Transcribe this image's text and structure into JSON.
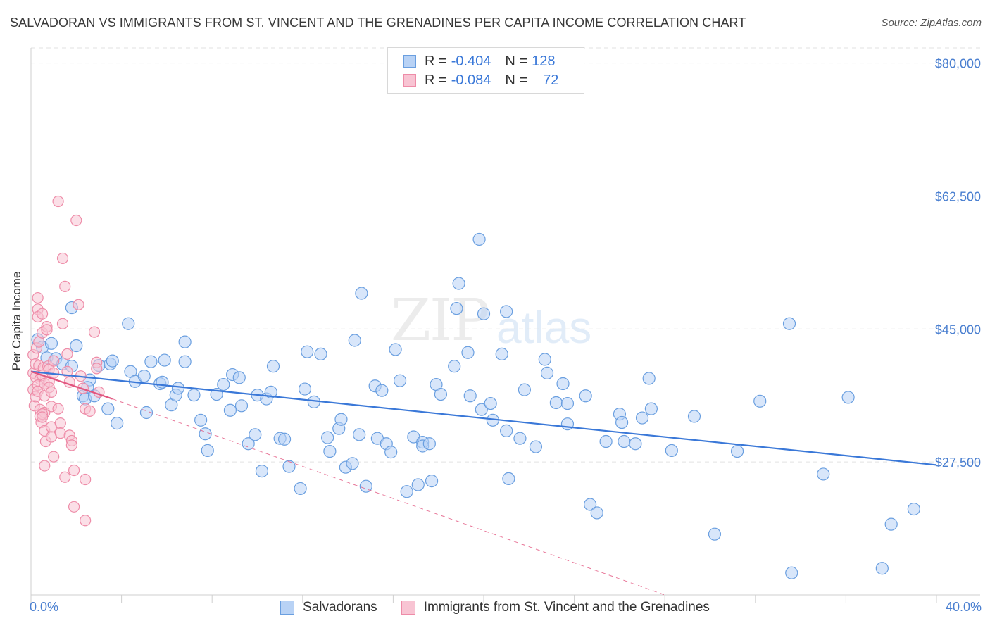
{
  "header": {
    "title": "SALVADORAN VS IMMIGRANTS FROM ST. VINCENT AND THE GRENADINES PER CAPITA INCOME CORRELATION CHART",
    "source": "Source: ZipAtlas.com"
  },
  "watermark": {
    "zip": "ZIP",
    "atlas": "atlas"
  },
  "legend": {
    "rows": [
      {
        "r_label": "R = ",
        "r_value": "-0.404",
        "n_label": "N = ",
        "n_value": "128"
      },
      {
        "r_label": "R = ",
        "r_value": "-0.084",
        "n_label": "N = ",
        "n_value": "72"
      }
    ]
  },
  "bottom_legend": {
    "items": [
      {
        "label": "Salvadorans"
      },
      {
        "label": "Immigrants from St. Vincent and the Grenadines"
      }
    ]
  },
  "colors": {
    "blue": "#3a78d8",
    "blue_fill": "#b8d2f5",
    "blue_stroke": "#6a9fe0",
    "pink": "#e2557f",
    "pink_fill": "#f8c4d3",
    "pink_stroke": "#ee8ca8",
    "grid": "#e2e2e2",
    "axis_label": "#4a7fd0"
  },
  "chart_data": {
    "type": "scatter",
    "title": "SALVADORAN VS IMMIGRANTS FROM ST. VINCENT AND THE GRENADINES PER CAPITA INCOME CORRELATION CHART",
    "xlabel": "",
    "ylabel": "Per Capita Income",
    "xlim": [
      0,
      40
    ],
    "ylim": [
      10000,
      82000
    ],
    "x_tick_labels": [
      "0.0%",
      "40.0%"
    ],
    "y_ticks": [
      27500,
      45000,
      62500,
      80000
    ],
    "y_tick_labels": [
      "$27,500",
      "$45,000",
      "$62,500",
      "$80,000"
    ],
    "series": [
      {
        "name": "Salvadorans",
        "r": -0.404,
        "n": 128,
        "trend": {
          "x": [
            0,
            40
          ],
          "y": [
            39400,
            27100
          ]
        },
        "points": [
          [
            0.3,
            43600
          ],
          [
            0.5,
            42600
          ],
          [
            0.7,
            41200
          ],
          [
            0.9,
            43100
          ],
          [
            1.1,
            41100
          ],
          [
            1.4,
            40400
          ],
          [
            1.8,
            40100
          ],
          [
            2.0,
            42800
          ],
          [
            1.8,
            47800
          ],
          [
            2.6,
            38300
          ],
          [
            2.5,
            37300
          ],
          [
            2.3,
            36200
          ],
          [
            2.4,
            35800
          ],
          [
            2.8,
            36200
          ],
          [
            3.0,
            40200
          ],
          [
            3.5,
            40400
          ],
          [
            3.6,
            40800
          ],
          [
            3.4,
            34500
          ],
          [
            3.8,
            32600
          ],
          [
            4.3,
            45700
          ],
          [
            4.4,
            39400
          ],
          [
            4.6,
            38100
          ],
          [
            5.0,
            38800
          ],
          [
            5.1,
            34000
          ],
          [
            5.3,
            40700
          ],
          [
            5.7,
            37800
          ],
          [
            5.8,
            38000
          ],
          [
            5.9,
            40900
          ],
          [
            6.2,
            35000
          ],
          [
            6.4,
            36300
          ],
          [
            6.5,
            37200
          ],
          [
            6.8,
            43300
          ],
          [
            6.8,
            40700
          ],
          [
            7.2,
            36300
          ],
          [
            7.5,
            33000
          ],
          [
            7.8,
            29000
          ],
          [
            7.7,
            31200
          ],
          [
            8.2,
            36400
          ],
          [
            8.5,
            37700
          ],
          [
            8.8,
            34300
          ],
          [
            8.9,
            39000
          ],
          [
            9.2,
            38600
          ],
          [
            9.3,
            34900
          ],
          [
            10.0,
            36300
          ],
          [
            9.6,
            29900
          ],
          [
            9.9,
            31100
          ],
          [
            10.2,
            26300
          ],
          [
            10.4,
            35800
          ],
          [
            10.6,
            36700
          ],
          [
            10.7,
            40100
          ],
          [
            11.0,
            30600
          ],
          [
            11.2,
            30500
          ],
          [
            11.4,
            26900
          ],
          [
            11.9,
            24000
          ],
          [
            12.1,
            37100
          ],
          [
            12.2,
            42000
          ],
          [
            12.5,
            35400
          ],
          [
            12.8,
            41700
          ],
          [
            13.1,
            30700
          ],
          [
            13.2,
            28900
          ],
          [
            13.6,
            31900
          ],
          [
            13.7,
            33100
          ],
          [
            13.9,
            26800
          ],
          [
            14.2,
            27300
          ],
          [
            14.3,
            43500
          ],
          [
            14.5,
            31100
          ],
          [
            14.6,
            49700
          ],
          [
            14.8,
            24300
          ],
          [
            15.2,
            37500
          ],
          [
            15.3,
            30600
          ],
          [
            15.5,
            36900
          ],
          [
            15.7,
            29900
          ],
          [
            15.9,
            28800
          ],
          [
            16.1,
            42300
          ],
          [
            16.3,
            38200
          ],
          [
            16.6,
            23600
          ],
          [
            16.9,
            30800
          ],
          [
            17.1,
            24500
          ],
          [
            17.3,
            30100
          ],
          [
            17.3,
            29600
          ],
          [
            17.6,
            29900
          ],
          [
            17.7,
            25000
          ],
          [
            17.9,
            37700
          ],
          [
            18.1,
            36400
          ],
          [
            18.7,
            40100
          ],
          [
            18.8,
            47700
          ],
          [
            18.9,
            51000
          ],
          [
            19.3,
            41900
          ],
          [
            19.4,
            36200
          ],
          [
            19.8,
            56800
          ],
          [
            19.9,
            34400
          ],
          [
            20.0,
            47000
          ],
          [
            20.3,
            35200
          ],
          [
            20.4,
            33000
          ],
          [
            20.8,
            41700
          ],
          [
            21.0,
            31600
          ],
          [
            21.1,
            25300
          ],
          [
            21.0,
            47300
          ],
          [
            21.6,
            30600
          ],
          [
            21.8,
            37000
          ],
          [
            22.3,
            29500
          ],
          [
            22.7,
            41000
          ],
          [
            22.8,
            39200
          ],
          [
            23.2,
            35300
          ],
          [
            23.5,
            37800
          ],
          [
            23.7,
            35200
          ],
          [
            23.7,
            32500
          ],
          [
            24.5,
            36200
          ],
          [
            24.7,
            21900
          ],
          [
            25.0,
            20800
          ],
          [
            25.4,
            30200
          ],
          [
            26.2,
            30200
          ],
          [
            26.0,
            33800
          ],
          [
            26.1,
            32700
          ],
          [
            26.7,
            29900
          ],
          [
            27.0,
            33300
          ],
          [
            27.3,
            38500
          ],
          [
            27.4,
            34500
          ],
          [
            28.3,
            29000
          ],
          [
            29.3,
            33500
          ],
          [
            30.2,
            18000
          ],
          [
            31.2,
            28900
          ],
          [
            32.2,
            35500
          ],
          [
            33.5,
            45700
          ],
          [
            33.6,
            12900
          ],
          [
            35.0,
            25900
          ],
          [
            36.1,
            36000
          ],
          [
            37.6,
            13500
          ],
          [
            38.0,
            19300
          ],
          [
            39.0,
            21300
          ]
        ]
      },
      {
        "name": "Immigrants from St. Vincent and the Grenadines",
        "r": -0.084,
        "n": 72,
        "trend": {
          "x": [
            0,
            3.6
          ],
          "y": [
            39400,
            35800
          ]
        },
        "trend_extended": {
          "x": [
            3.6,
            28.0
          ],
          "y": [
            35800,
            10000
          ]
        },
        "points": [
          [
            0.1,
            41600
          ],
          [
            0.1,
            39200
          ],
          [
            0.1,
            37000
          ],
          [
            0.15,
            34900
          ],
          [
            0.2,
            40400
          ],
          [
            0.2,
            38700
          ],
          [
            0.2,
            36100
          ],
          [
            0.25,
            42500
          ],
          [
            0.3,
            47600
          ],
          [
            0.3,
            46600
          ],
          [
            0.35,
            43300
          ],
          [
            0.35,
            40200
          ],
          [
            0.4,
            38400
          ],
          [
            0.3,
            37600
          ],
          [
            0.3,
            36800
          ],
          [
            0.4,
            34400
          ],
          [
            0.4,
            33500
          ],
          [
            0.45,
            32700
          ],
          [
            0.3,
            49100
          ],
          [
            0.5,
            47000
          ],
          [
            0.5,
            44500
          ],
          [
            0.55,
            39900
          ],
          [
            0.5,
            38900
          ],
          [
            0.6,
            37800
          ],
          [
            0.6,
            36200
          ],
          [
            0.6,
            34000
          ],
          [
            0.5,
            33800
          ],
          [
            0.5,
            33400
          ],
          [
            0.6,
            31600
          ],
          [
            0.65,
            30200
          ],
          [
            0.6,
            27000
          ],
          [
            0.7,
            45300
          ],
          [
            0.7,
            44900
          ],
          [
            0.75,
            40100
          ],
          [
            0.8,
            39700
          ],
          [
            0.8,
            38100
          ],
          [
            0.8,
            37300
          ],
          [
            0.9,
            36700
          ],
          [
            0.9,
            34800
          ],
          [
            0.9,
            32100
          ],
          [
            0.9,
            30800
          ],
          [
            1.0,
            40800
          ],
          [
            1.0,
            39200
          ],
          [
            1.0,
            28200
          ],
          [
            1.2,
            61800
          ],
          [
            1.2,
            34500
          ],
          [
            1.3,
            32600
          ],
          [
            1.3,
            31300
          ],
          [
            1.4,
            54300
          ],
          [
            1.4,
            45700
          ],
          [
            1.5,
            50600
          ],
          [
            1.5,
            25500
          ],
          [
            1.6,
            41700
          ],
          [
            1.6,
            39400
          ],
          [
            1.7,
            38000
          ],
          [
            1.7,
            31000
          ],
          [
            1.8,
            30300
          ],
          [
            1.8,
            29700
          ],
          [
            1.9,
            26400
          ],
          [
            1.9,
            21600
          ],
          [
            2.0,
            59300
          ],
          [
            2.1,
            48200
          ],
          [
            2.2,
            38800
          ],
          [
            2.3,
            37200
          ],
          [
            2.4,
            34500
          ],
          [
            2.6,
            34200
          ],
          [
            2.8,
            44600
          ],
          [
            2.9,
            40600
          ],
          [
            2.4,
            25200
          ],
          [
            2.4,
            19800
          ],
          [
            3.0,
            36700
          ],
          [
            2.9,
            39800
          ]
        ]
      }
    ]
  }
}
